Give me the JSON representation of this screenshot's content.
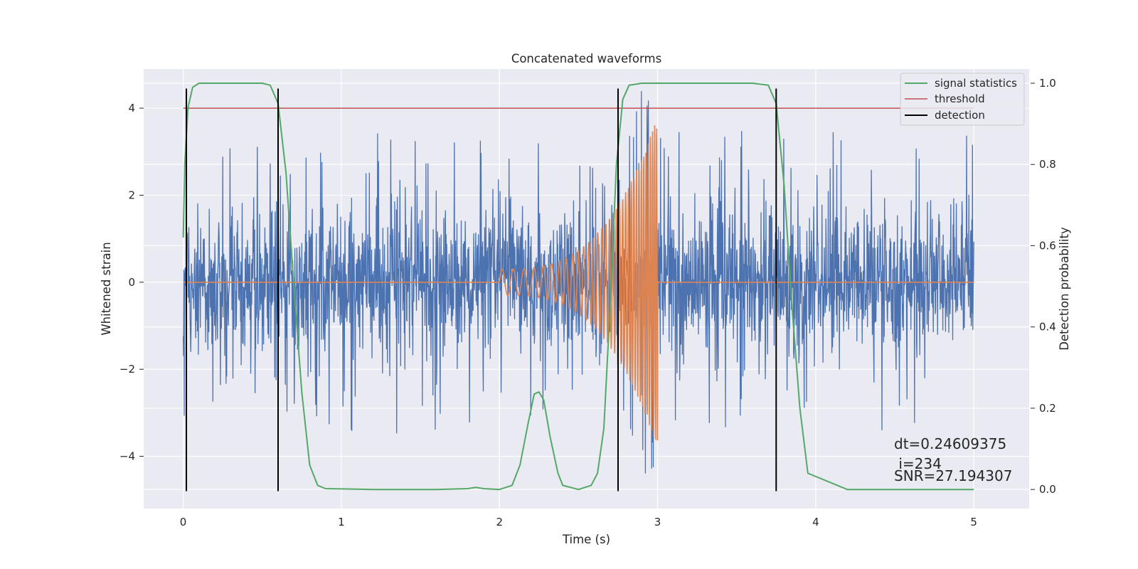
{
  "chart_data": {
    "type": "line",
    "title": "Concatenated waveforms",
    "xlabel": "Time (s)",
    "ylabel": "Whitened strain",
    "y2label": "Detection probability",
    "xlim": [
      -0.25,
      5.35
    ],
    "ylim": [
      -5.2,
      4.9
    ],
    "y2lim": [
      -0.047,
      1.035
    ],
    "xticks": [
      0,
      1,
      2,
      3,
      4,
      5
    ],
    "xtick_labels": [
      "0",
      "1",
      "2",
      "3",
      "4",
      "5"
    ],
    "yticks": [
      -4,
      -2,
      0,
      2,
      4
    ],
    "ytick_labels": [
      "−4",
      "−2",
      "0",
      "2",
      "4"
    ],
    "y2ticks": [
      0.0,
      0.2,
      0.4,
      0.6,
      0.8,
      1.0
    ],
    "y2tick_labels": [
      "0.0",
      "0.2",
      "0.4",
      "0.6",
      "0.8",
      "1.0"
    ],
    "grid": true,
    "legend_position": "top-right",
    "colors": {
      "noise": "#4c72b0",
      "injection": "#dd8452",
      "signal": "#55a868",
      "threshold": "#c44e52",
      "detection": "#000000",
      "plot_bg": "#eaeaf2",
      "grid": "#ffffff"
    },
    "series": [
      {
        "key": "noise",
        "kind": "noise",
        "x_range": [
          0,
          5
        ],
        "core_sigma": 0.75,
        "spike_max": 3.5
      },
      {
        "key": "injection",
        "kind": "chirp",
        "x_range": [
          2,
          3
        ],
        "amp_start": 0.3,
        "amp_peak": 3.8,
        "freq_start": 14,
        "freq_end": 80
      },
      {
        "name": "signal statistics",
        "axis": "right",
        "x": [
          0,
          0.01,
          0.03,
          0.06,
          0.1,
          0.2,
          0.5,
          0.55,
          0.6,
          0.65,
          0.7,
          0.75,
          0.8,
          0.85,
          0.9,
          1.2,
          1.6,
          1.8,
          1.85,
          1.9,
          2.0,
          2.08,
          2.13,
          2.18,
          2.22,
          2.25,
          2.28,
          2.32,
          2.37,
          2.4,
          2.5,
          2.58,
          2.62,
          2.66,
          2.7,
          2.74,
          2.78,
          2.82,
          2.9,
          3.2,
          3.6,
          3.7,
          3.75,
          3.8,
          3.85,
          3.9,
          3.95,
          4.2,
          5.0
        ],
        "y": [
          0.62,
          0.8,
          0.94,
          0.99,
          1.0,
          1.0,
          1.0,
          0.995,
          0.95,
          0.78,
          0.5,
          0.24,
          0.06,
          0.01,
          0.002,
          0.0,
          0.0,
          0.002,
          0.005,
          0.002,
          0.0,
          0.01,
          0.06,
          0.16,
          0.235,
          0.24,
          0.22,
          0.13,
          0.04,
          0.01,
          0.0,
          0.01,
          0.04,
          0.15,
          0.45,
          0.8,
          0.96,
          0.995,
          1.0,
          1.0,
          1.0,
          0.995,
          0.95,
          0.75,
          0.45,
          0.2,
          0.04,
          0.0,
          0.0
        ]
      },
      {
        "name": "threshold",
        "axis": "left",
        "x": [
          0,
          5
        ],
        "y": [
          4,
          4
        ]
      },
      {
        "name": "detection",
        "kind": "vlines",
        "x": [
          0.02,
          0.6,
          2.75,
          3.75
        ],
        "y_range": [
          -4.8,
          4.45
        ]
      }
    ],
    "annotations": [
      {
        "text": "dt=0.24609375"
      },
      {
        "text": " i=234"
      },
      {
        "text": "SNR=27.194307"
      }
    ]
  }
}
